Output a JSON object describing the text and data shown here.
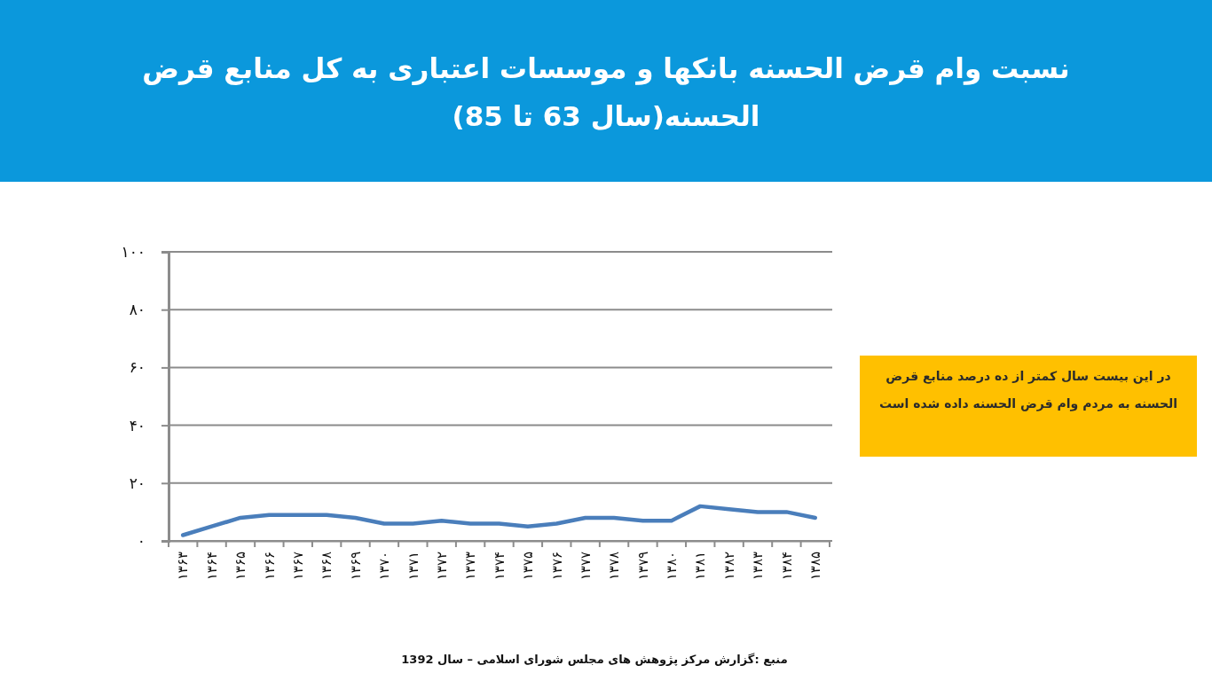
{
  "chart_data": {
    "type": "line",
    "title": "نسبت وام قرض الحسنه بانکها و موسسات اعتباری به کل منابع قرض الحسنه(سال 63 تا 85)",
    "categories": [
      "۱۳۶۳",
      "۱۳۶۴",
      "۱۳۶۵",
      "۱۳۶۶",
      "۱۳۶۷",
      "۱۳۶۸",
      "۱۳۶۹",
      "۱۳۷۰",
      "۱۳۷۱",
      "۱۳۷۲",
      "۱۳۷۳",
      "۱۳۷۴",
      "۱۳۷۵",
      "۱۳۷۶",
      "۱۳۷۷",
      "۱۳۷۸",
      "۱۳۷۹",
      "۱۳۸۰",
      "۱۳۸۱",
      "۱۳۸۲",
      "۱۳۸۳",
      "۱۳۸۴",
      "۱۳۸۵"
    ],
    "values": [
      2,
      5,
      8,
      9,
      9,
      9,
      8,
      6,
      6,
      7,
      6,
      6,
      5,
      6,
      8,
      8,
      7,
      7,
      12,
      11,
      10,
      10,
      8
    ],
    "color": "#4a7ebb",
    "ylim": [
      0,
      100
    ],
    "yticks": [
      {
        "value": 0,
        "label": "۰"
      },
      {
        "value": 20,
        "label": "۲۰"
      },
      {
        "value": 40,
        "label": "۴۰"
      },
      {
        "value": 60,
        "label": "۶۰"
      },
      {
        "value": 80,
        "label": "۸۰"
      },
      {
        "value": 100,
        "label": "۱۰۰"
      }
    ],
    "grid": "y",
    "annotations": [
      "در این بیست سال کمتر از ده درصد منابع قرض الحسنه به مردم وام قرض الحسنه داده شده است",
      "منبع :گزارش مرکز پژوهش های مجلس شورای اسلامی – سال 1392"
    ]
  }
}
